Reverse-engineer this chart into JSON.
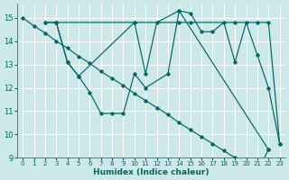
{
  "xlabel": "Humidex (Indice chaleur)",
  "bg_color": "#cce8e8",
  "grid_color": "#b0d0d0",
  "line_color": "#006666",
  "xlim": [
    -0.5,
    23.5
  ],
  "ylim": [
    9,
    15.6
  ],
  "xticks": [
    0,
    1,
    2,
    3,
    4,
    5,
    6,
    7,
    8,
    9,
    10,
    11,
    12,
    13,
    14,
    15,
    16,
    17,
    18,
    19,
    20,
    21,
    22,
    23
  ],
  "yticks": [
    9,
    10,
    11,
    12,
    13,
    14,
    15
  ],
  "lines": [
    {
      "x": [
        0,
        1,
        2,
        3,
        4,
        5,
        6,
        7,
        8,
        9,
        10,
        11,
        12,
        13,
        14,
        15,
        16,
        17,
        18,
        19,
        20,
        21,
        22
      ],
      "y": [
        15.0,
        14.65,
        14.35,
        14.0,
        13.7,
        13.35,
        13.05,
        12.7,
        12.4,
        12.1,
        11.75,
        11.45,
        11.15,
        10.85,
        10.5,
        10.2,
        9.9,
        9.6,
        9.3,
        9.0,
        8.7,
        8.4,
        9.35
      ]
    },
    {
      "x": [
        2,
        3,
        10,
        14,
        15,
        19,
        21,
        22,
        23
      ],
      "y": [
        14.8,
        14.8,
        14.8,
        14.8,
        14.8,
        14.8,
        14.8,
        14.8,
        9.6
      ]
    },
    {
      "x": [
        2,
        3,
        4,
        5,
        10,
        11,
        12,
        14,
        15,
        16,
        17,
        18,
        19,
        20,
        21,
        22,
        23
      ],
      "y": [
        14.8,
        14.8,
        13.1,
        12.5,
        14.8,
        12.6,
        14.8,
        15.3,
        15.2,
        14.4,
        14.4,
        14.8,
        13.1,
        14.8,
        13.4,
        12.0,
        9.6
      ]
    },
    {
      "x": [
        3,
        4,
        5,
        6,
        7,
        8,
        9,
        10,
        11,
        13,
        14,
        22
      ],
      "y": [
        14.8,
        13.1,
        12.5,
        11.8,
        10.9,
        10.9,
        10.9,
        12.6,
        12.0,
        12.6,
        15.3,
        9.35
      ]
    }
  ]
}
